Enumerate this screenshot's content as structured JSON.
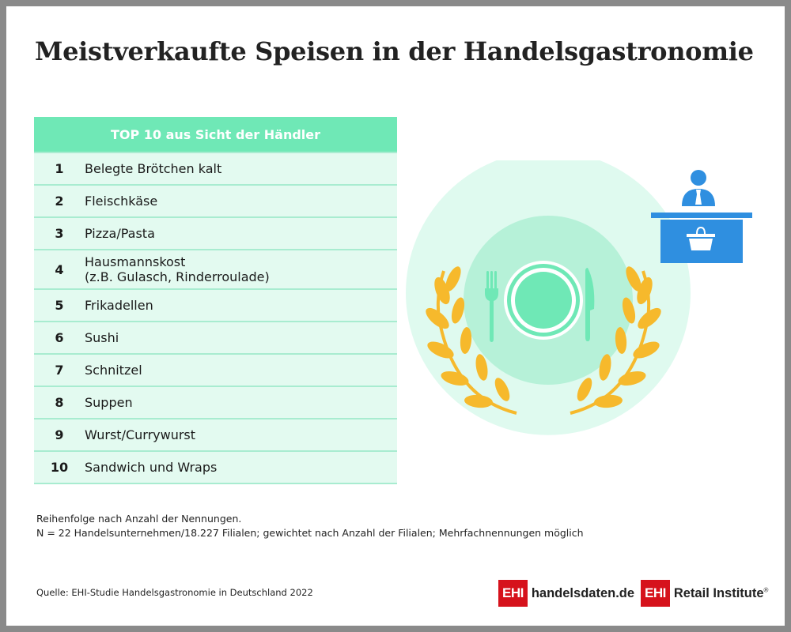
{
  "title": "Meistverkaufte Speisen in der Handelsgastronomie",
  "table": {
    "header": "TOP 10 aus Sicht der Händler",
    "rows": [
      {
        "rank": "1",
        "dish": "Belegte Brötchen kalt"
      },
      {
        "rank": "2",
        "dish": "Fleischkäse"
      },
      {
        "rank": "3",
        "dish": "Pizza/Pasta"
      },
      {
        "rank": "4",
        "dish": "Hausmannskost\n(z.B. Gulasch, Rinderroulade)"
      },
      {
        "rank": "5",
        "dish": "Frikadellen"
      },
      {
        "rank": "6",
        "dish": "Sushi"
      },
      {
        "rank": "7",
        "dish": "Schnitzel"
      },
      {
        "rank": "8",
        "dish": "Suppen"
      },
      {
        "rank": "9",
        "dish": "Wurst/Currywurst"
      },
      {
        "rank": "10",
        "dish": "Sandwich und Wraps"
      }
    ]
  },
  "footnote": {
    "line1": "Reihenfolge nach Anzahl der Nennungen.",
    "line2": "N = 22 Handelsunternehmen/18.227 Filialen; gewichtet nach Anzahl der Filialen; Mehrfachnennungen möglich"
  },
  "source": "Quelle: EHI-Studie Handelsgastronomie in Deutschland 2022",
  "logos": {
    "mark": "EHI",
    "handelsdaten": "handelsdaten.de",
    "retail": "Retail Institute",
    "registered": "®"
  },
  "colors": {
    "accent_green": "#6fe8b6",
    "row_bg": "#e3faf0",
    "laurel": "#f6b92c",
    "counter_blue": "#2f8fe0",
    "logo_red": "#d6121c"
  },
  "icons": [
    "fork-icon",
    "plate-icon",
    "knife-icon",
    "laurel-icon",
    "vendor-icon",
    "basket-icon"
  ]
}
